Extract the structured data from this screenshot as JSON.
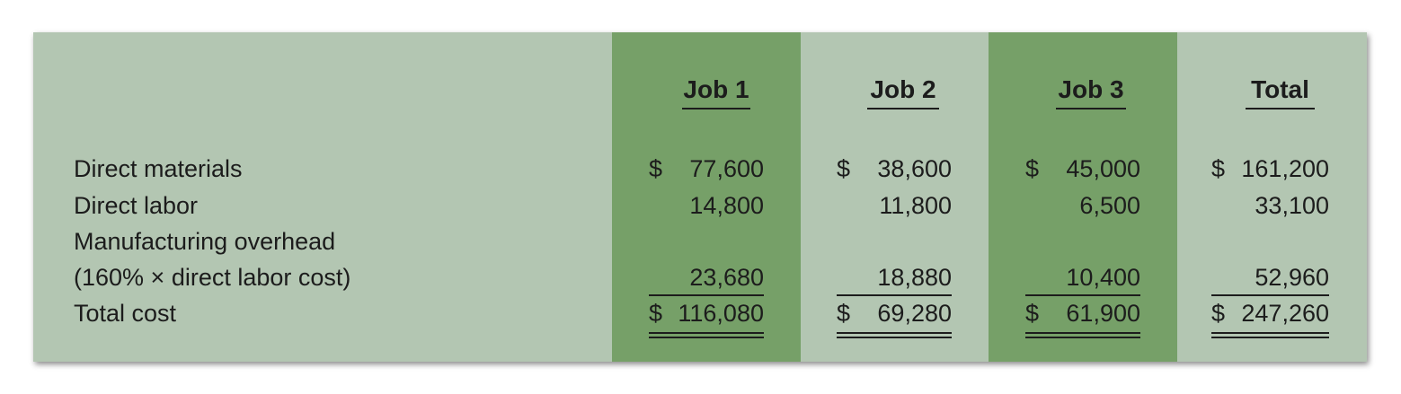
{
  "table": {
    "columns": [
      "Job 1",
      "Job 2",
      "Job 3",
      "Total"
    ],
    "rows": [
      {
        "label": "Direct materials",
        "cells": [
          {
            "dollar": "$",
            "value": "77,600"
          },
          {
            "dollar": "$",
            "value": "38,600"
          },
          {
            "dollar": "$",
            "value": "45,000"
          },
          {
            "dollar": "$",
            "value": "161,200"
          }
        ]
      },
      {
        "label": "Direct labor",
        "cells": [
          {
            "dollar": "",
            "value": "14,800"
          },
          {
            "dollar": "",
            "value": "11,800"
          },
          {
            "dollar": "",
            "value": "6,500"
          },
          {
            "dollar": "",
            "value": "33,100"
          }
        ]
      },
      {
        "label": "Manufacturing overhead",
        "cells": []
      },
      {
        "label": "(160% × direct labor cost)",
        "cells": [
          {
            "dollar": "",
            "value": "23,680"
          },
          {
            "dollar": "",
            "value": "18,880"
          },
          {
            "dollar": "",
            "value": "10,400"
          },
          {
            "dollar": "",
            "value": "52,960"
          }
        ]
      },
      {
        "label": "Total cost",
        "cells": [
          {
            "dollar": "$",
            "value": "116,080"
          },
          {
            "dollar": "$",
            "value": "69,280"
          },
          {
            "dollar": "$",
            "value": "61,900"
          },
          {
            "dollar": "$",
            "value": "247,260"
          }
        ]
      }
    ]
  },
  "colors": {
    "background": "#b3c6b2",
    "highlight_band": "#76a068",
    "text": "#1c1c1c"
  }
}
